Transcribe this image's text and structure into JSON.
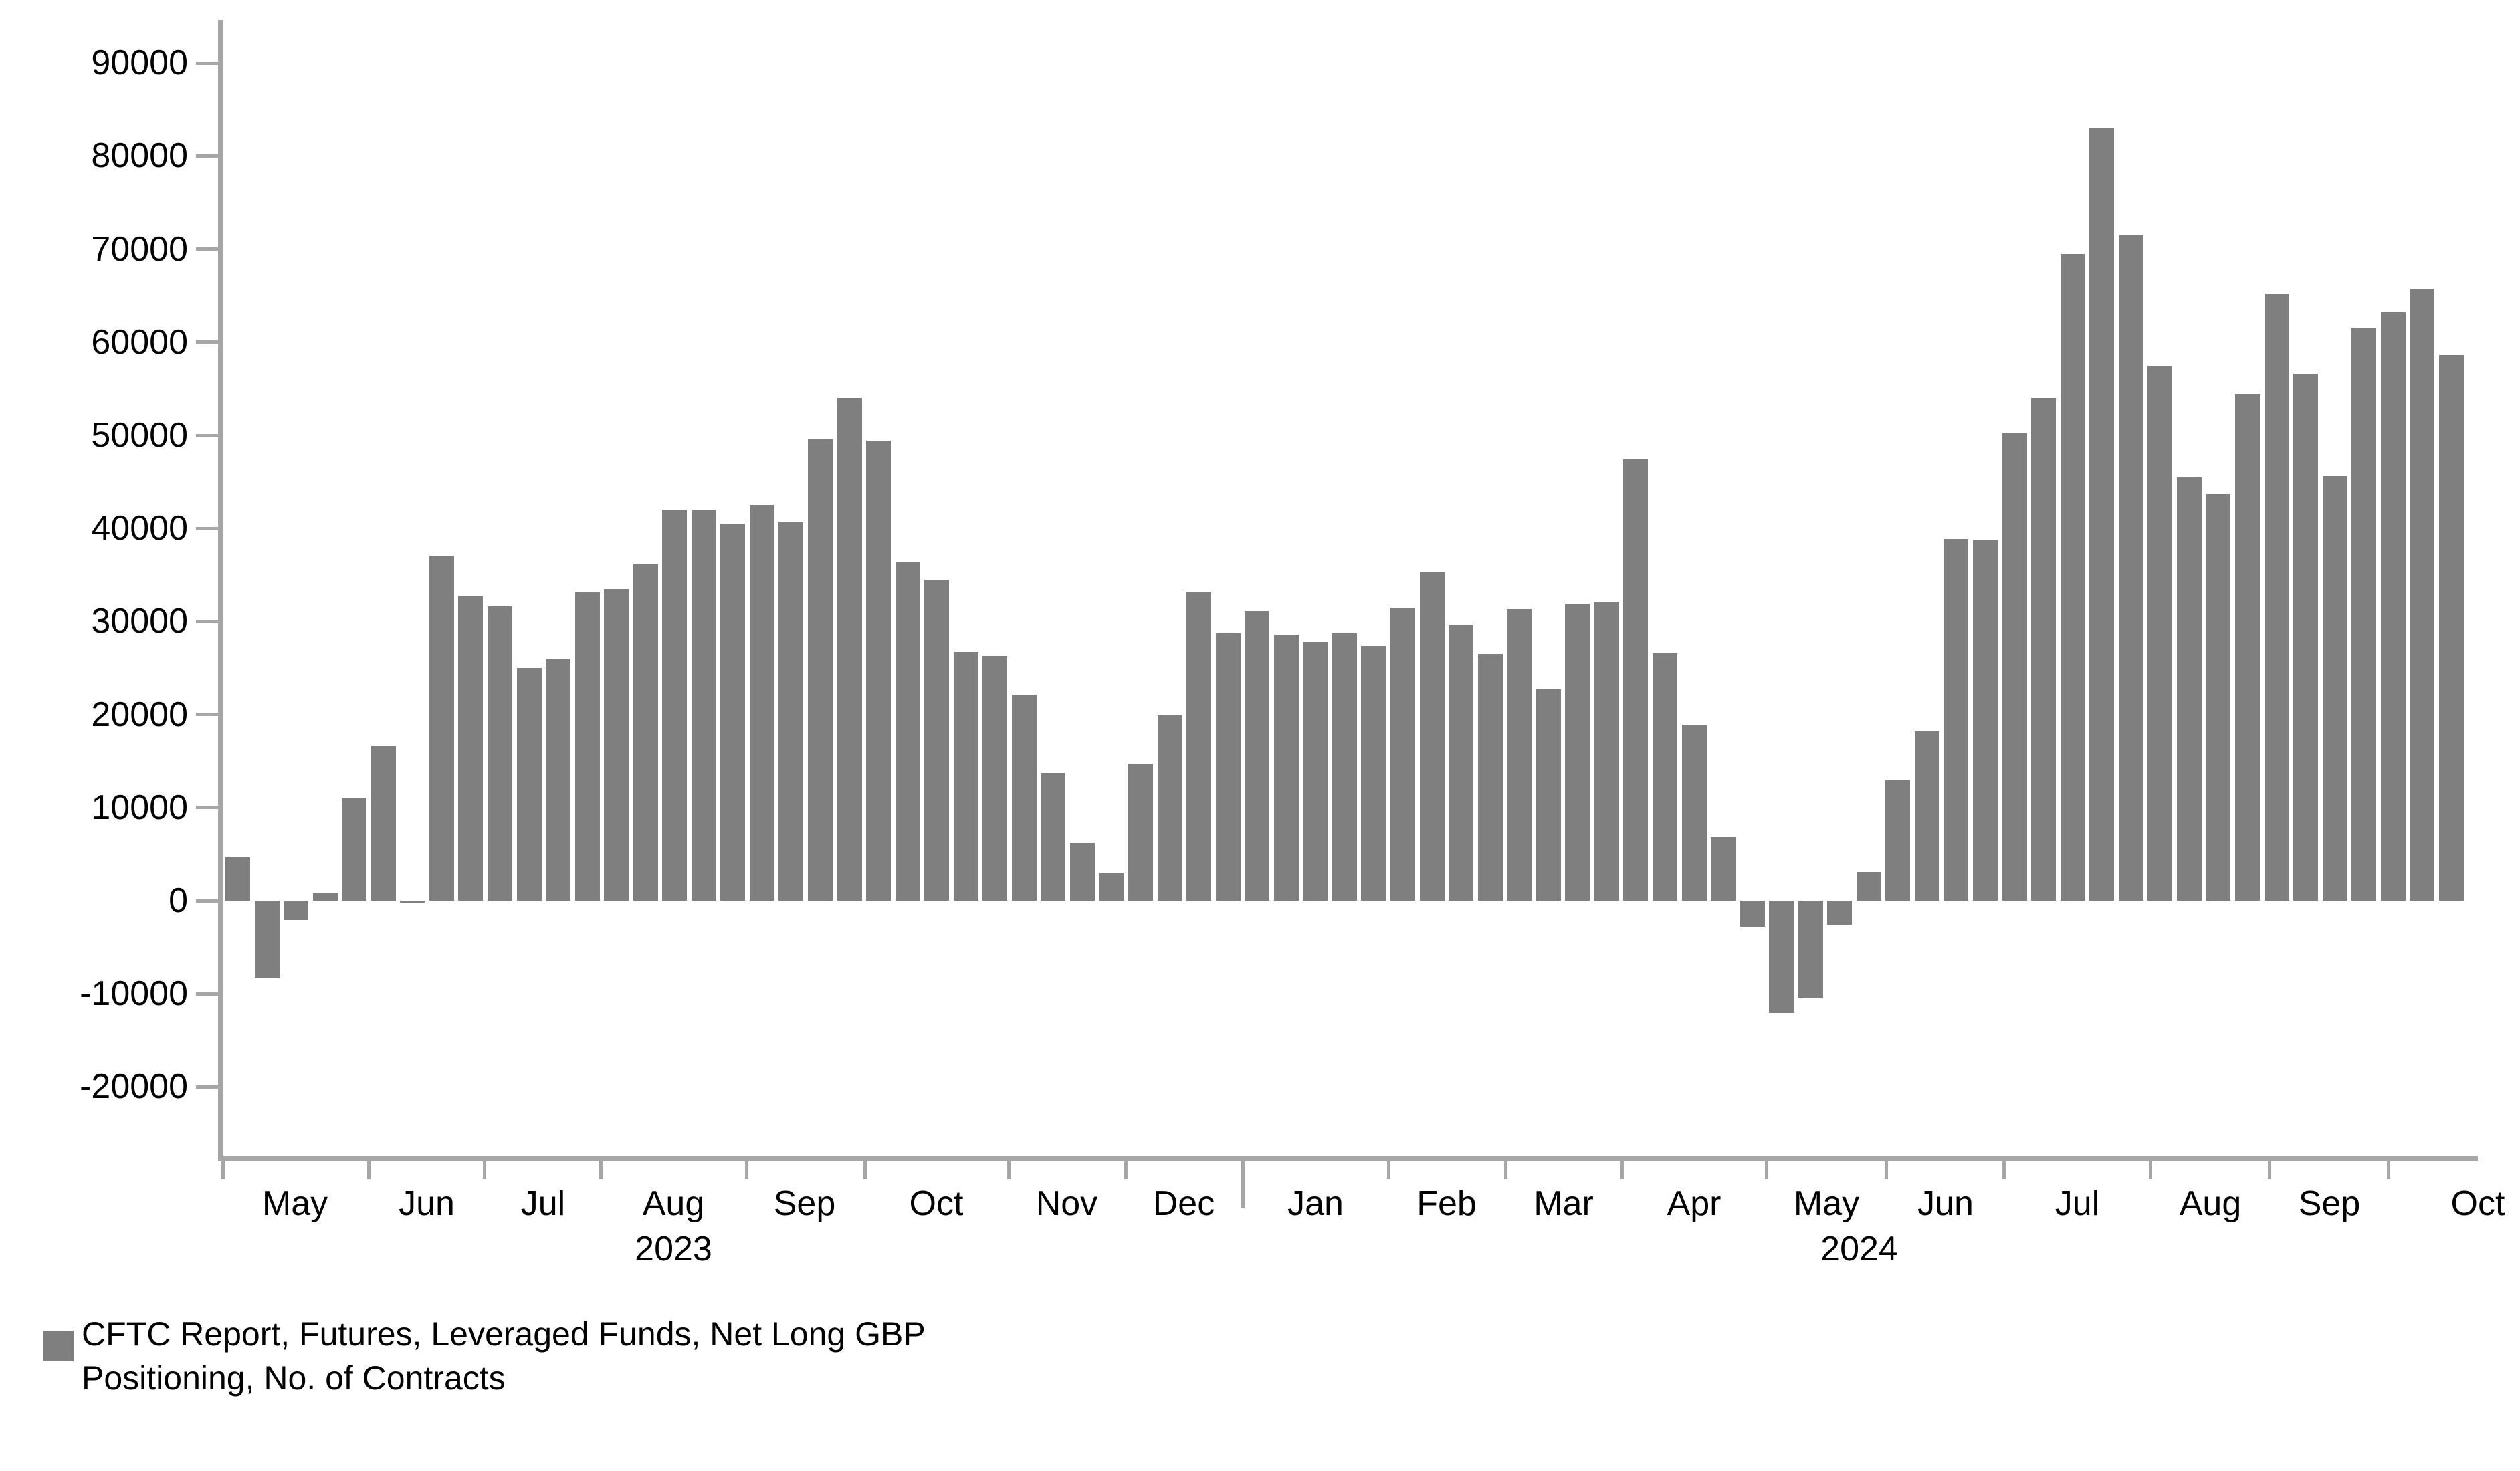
{
  "chart_data": {
    "type": "bar",
    "title": "",
    "xlabel": "",
    "ylabel": "",
    "legend": [
      "CFTC Report, Futures, Leveraged Funds, Net Long GBP",
      "Positioning, No. of Contracts"
    ],
    "legend_position": "bottom-left",
    "grid": false,
    "ylim": [
      -20000,
      90000
    ],
    "y_ticks": [
      90000,
      80000,
      70000,
      60000,
      50000,
      40000,
      30000,
      20000,
      10000,
      0,
      -10000,
      -20000
    ],
    "x_unit": "weekly observations, Apr 2023 - Oct 2024",
    "values": [
      4700,
      -8300,
      -2100,
      800,
      11000,
      16700,
      -200,
      37100,
      32700,
      31600,
      25000,
      25900,
      33100,
      33500,
      36100,
      42000,
      42000,
      40500,
      42500,
      40700,
      49600,
      54000,
      49400,
      36400,
      34500,
      26700,
      26300,
      22100,
      13700,
      6200,
      3000,
      14700,
      19900,
      33100,
      28700,
      31100,
      28600,
      27800,
      28700,
      27400,
      31500,
      35300,
      29700,
      26500,
      31300,
      22700,
      31900,
      32100,
      47400,
      26600,
      18900,
      6800,
      -2800,
      -12100,
      -10500,
      -2600,
      3100,
      12900,
      18200,
      38900,
      38700,
      50200,
      54000,
      69500,
      83000,
      71500,
      57500,
      45500,
      43700,
      54400,
      65200,
      56600,
      45600,
      61600,
      63200,
      65700,
      58600
    ],
    "x_axis": {
      "month_labels": [
        {
          "label": "May",
          "x": 441
        },
        {
          "label": "Jun",
          "x": 638
        },
        {
          "label": "Jul",
          "x": 812
        },
        {
          "label": "Aug",
          "x": 1007
        },
        {
          "label": "Sep",
          "x": 1203
        },
        {
          "label": "Oct",
          "x": 1400
        },
        {
          "label": "Nov",
          "x": 1595
        },
        {
          "label": "Dec",
          "x": 1770
        },
        {
          "label": "Jan",
          "x": 1967
        },
        {
          "label": "Feb",
          "x": 2163
        },
        {
          "label": "Mar",
          "x": 2338
        },
        {
          "label": "Apr",
          "x": 2533
        },
        {
          "label": "May",
          "x": 2731
        },
        {
          "label": "Jun",
          "x": 2909
        },
        {
          "label": "Jul",
          "x": 3106
        },
        {
          "label": "Aug",
          "x": 3305
        },
        {
          "label": "Sep",
          "x": 3483
        },
        {
          "label": "Oct",
          "x": 3705
        }
      ],
      "year_labels": [
        {
          "label": "2023",
          "x": 1007
        },
        {
          "label": "2024",
          "x": 2780
        }
      ],
      "month_tick_x": [
        333,
        551,
        724,
        898,
        1116,
        1293,
        1508,
        1683,
        1858,
        2076,
        2251,
        2425,
        2641,
        2820,
        2996,
        3215,
        3393,
        3571
      ],
      "year_divider_x": 1858
    },
    "bar_color": "#7f7f7f",
    "axis_color": "#a6a6a6",
    "text_color": "#000000"
  }
}
